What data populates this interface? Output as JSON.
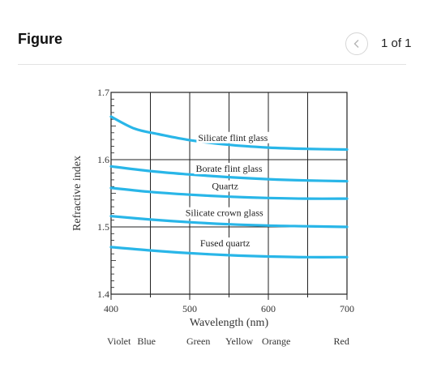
{
  "header": {
    "title": "Figure",
    "pager": "1 of 1",
    "prev_icon": "chevron-left-icon"
  },
  "chart_data": {
    "type": "line",
    "ylabel": "Refractive index",
    "xlabel": "Wavelength (nm)",
    "xlim": [
      400,
      700
    ],
    "ylim": [
      1.4,
      1.7
    ],
    "xticks": [
      "400",
      "500",
      "600",
      "700"
    ],
    "yticks": [
      "1.4",
      "1.5",
      "1.6",
      "1.7"
    ],
    "grid": true,
    "line_color": "#29b6e8",
    "color_labels": [
      {
        "label": "Violet",
        "x": 410
      },
      {
        "label": "Blue",
        "x": 445
      },
      {
        "label": "Green",
        "x": 511
      },
      {
        "label": "Yellow",
        "x": 563
      },
      {
        "label": "Orange",
        "x": 610
      },
      {
        "label": "Red",
        "x": 693
      }
    ],
    "series": [
      {
        "name": "Silicate flint glass",
        "label_x": 555,
        "label_y": 1.628,
        "x": [
          400,
          430,
          460,
          500,
          550,
          600,
          650,
          700
        ],
        "y": [
          1.664,
          1.646,
          1.638,
          1.629,
          1.622,
          1.618,
          1.616,
          1.615
        ]
      },
      {
        "name": "Borate flint glass",
        "label_x": 550,
        "label_y": 1.582,
        "x": [
          400,
          450,
          500,
          550,
          600,
          650,
          700
        ],
        "y": [
          1.59,
          1.583,
          1.578,
          1.574,
          1.571,
          1.569,
          1.568
        ]
      },
      {
        "name": "Quartz",
        "label_x": 545,
        "label_y": 1.556,
        "x": [
          400,
          450,
          500,
          550,
          600,
          650,
          700
        ],
        "y": [
          1.558,
          1.552,
          1.548,
          1.545,
          1.543,
          1.542,
          1.542
        ]
      },
      {
        "name": "Silicate crown glass",
        "label_x": 544,
        "label_y": 1.516,
        "x": [
          400,
          450,
          500,
          550,
          600,
          650,
          700
        ],
        "y": [
          1.516,
          1.511,
          1.507,
          1.504,
          1.502,
          1.501,
          1.5
        ]
      },
      {
        "name": "Fused quartz",
        "label_x": 545,
        "label_y": 1.471,
        "x": [
          400,
          450,
          500,
          550,
          600,
          650,
          700
        ],
        "y": [
          1.47,
          1.465,
          1.461,
          1.458,
          1.456,
          1.455,
          1.455
        ]
      }
    ]
  }
}
